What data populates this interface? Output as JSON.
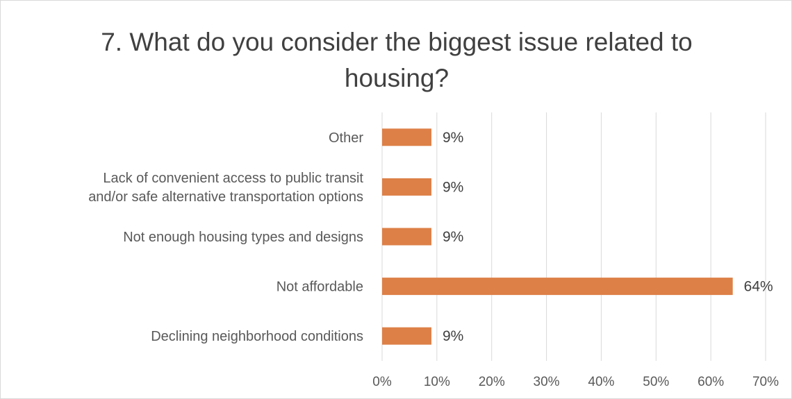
{
  "chart_data": {
    "type": "bar",
    "orientation": "horizontal",
    "title": "7. What do you consider the biggest issue related to housing?",
    "categories": [
      [
        "Other"
      ],
      [
        "Lack of convenient access to public transit",
        "and/or safe alternative transportation options"
      ],
      [
        "Not enough housing types and designs"
      ],
      [
        "Not affordable"
      ],
      [
        "Declining neighborhood conditions"
      ]
    ],
    "values": [
      0.09,
      0.09,
      0.09,
      0.64,
      0.09
    ],
    "data_labels": [
      "9%",
      "9%",
      "9%",
      "64%",
      "9%"
    ],
    "xlim": [
      0,
      0.7
    ],
    "xticks": [
      0,
      0.1,
      0.2,
      0.3,
      0.4,
      0.5,
      0.6,
      0.7
    ],
    "xtick_labels": [
      "0%",
      "10%",
      "20%",
      "30%",
      "40%",
      "50%",
      "60%",
      "70%"
    ],
    "bar_color": "#dd8047",
    "grid": "vertical"
  }
}
